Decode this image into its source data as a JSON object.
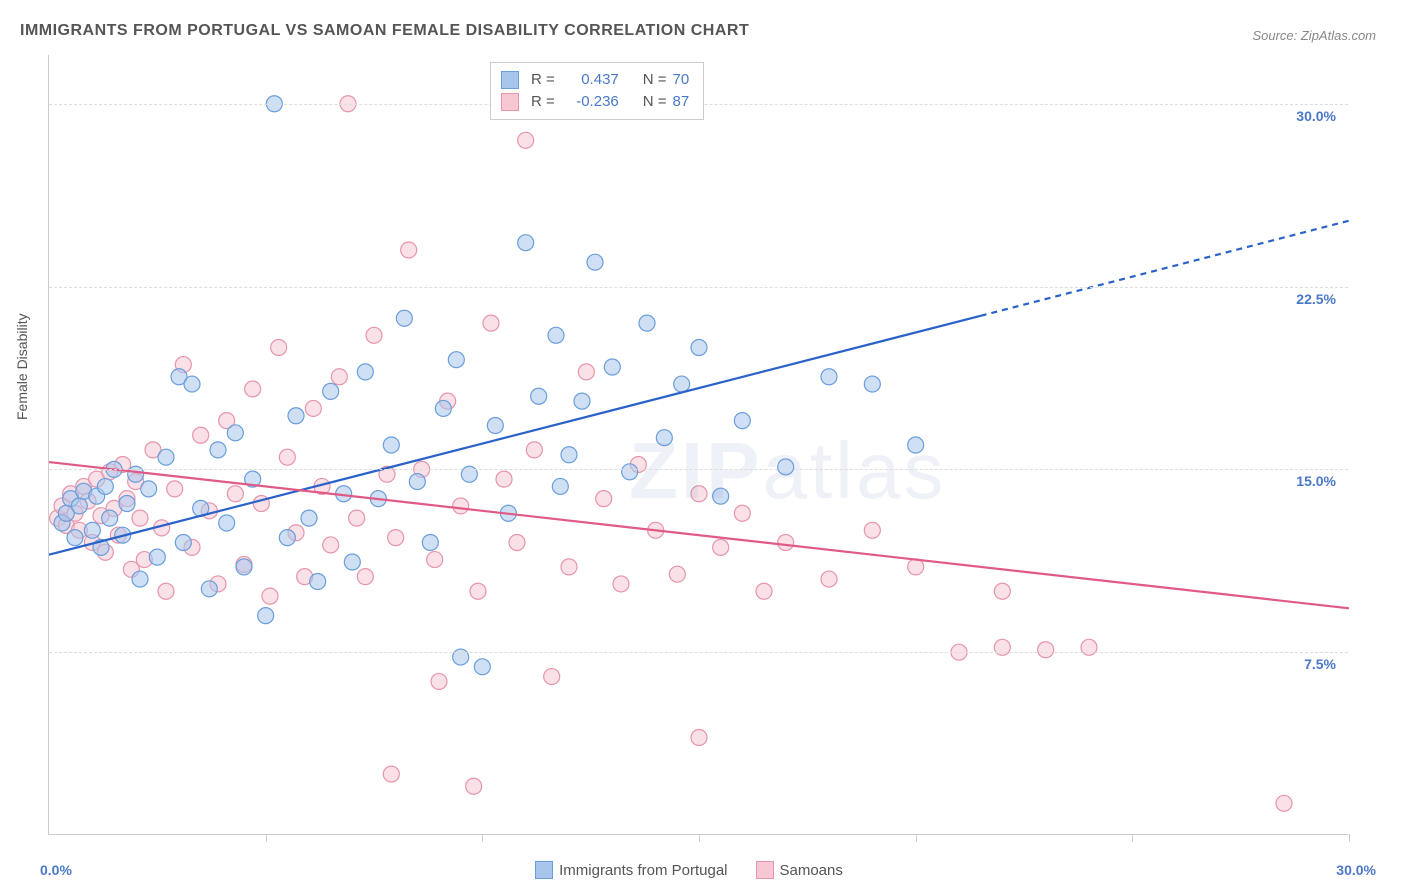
{
  "title": "IMMIGRANTS FROM PORTUGAL VS SAMOAN FEMALE DISABILITY CORRELATION CHART",
  "source": "Source: ZipAtlas.com",
  "y_axis_label": "Female Disability",
  "watermark_a": "ZIP",
  "watermark_b": "atlas",
  "colors": {
    "series1_fill": "#a8c6ec",
    "series1_stroke": "#6a9edb",
    "series1_line": "#2a62c9",
    "series2_fill": "#f6c8d4",
    "series2_stroke": "#e695ab",
    "series2_line": "#e05a85",
    "axis_label": "#4a78c8",
    "grid": "#dddddd"
  },
  "chart": {
    "type": "scatter",
    "xlim": [
      0,
      30
    ],
    "ylim": [
      0,
      32
    ],
    "x_ticks": [
      0,
      5,
      10,
      15,
      20,
      25,
      30
    ],
    "y_grid": [
      {
        "v": 7.5,
        "label": "7.5%"
      },
      {
        "v": 15.0,
        "label": "15.0%"
      },
      {
        "v": 22.5,
        "label": "22.5%"
      },
      {
        "v": 30.0,
        "label": "30.0%"
      }
    ],
    "x_corner_min": "0.0%",
    "x_corner_max": "30.0%",
    "legend_top": [
      {
        "r_label": "R =",
        "r_val": "0.437",
        "n_label": "N =",
        "n_val": "70",
        "swatch_fill": "#a8c6ec",
        "swatch_stroke": "#6a9edb"
      },
      {
        "r_label": "R =",
        "r_val": "-0.236",
        "n_label": "N =",
        "n_val": "87",
        "swatch_fill": "#f6c8d4",
        "swatch_stroke": "#e695ab"
      }
    ],
    "legend_bottom": [
      {
        "label": "Immigrants from Portugal",
        "swatch_fill": "#a8c6ec",
        "swatch_stroke": "#6a9edb"
      },
      {
        "label": "Samoans",
        "swatch_fill": "#f6c8d4",
        "swatch_stroke": "#e695ab"
      }
    ],
    "trend_lines": {
      "series1": {
        "x1": 0,
        "y1": 11.5,
        "x2_solid": 21.5,
        "y2_solid": 21.3,
        "x2_dash": 30,
        "y2_dash": 25.2,
        "color": "#2a62c9"
      },
      "series2": {
        "x1": 0,
        "y1": 15.3,
        "x2": 30,
        "y2": 9.3,
        "color": "#e05a85"
      }
    },
    "marker_radius": 8,
    "marker_opacity": 0.55,
    "series1_points": [
      [
        0.3,
        12.8
      ],
      [
        0.4,
        13.2
      ],
      [
        0.5,
        13.8
      ],
      [
        0.6,
        12.2
      ],
      [
        0.7,
        13.5
      ],
      [
        0.8,
        14.1
      ],
      [
        1.0,
        12.5
      ],
      [
        1.1,
        13.9
      ],
      [
        1.2,
        11.8
      ],
      [
        1.3,
        14.3
      ],
      [
        1.4,
        13.0
      ],
      [
        1.5,
        15.0
      ],
      [
        1.7,
        12.3
      ],
      [
        1.8,
        13.6
      ],
      [
        2.0,
        14.8
      ],
      [
        2.1,
        10.5
      ],
      [
        2.3,
        14.2
      ],
      [
        2.5,
        11.4
      ],
      [
        2.7,
        15.5
      ],
      [
        3.0,
        18.8
      ],
      [
        3.1,
        12.0
      ],
      [
        3.3,
        18.5
      ],
      [
        3.5,
        13.4
      ],
      [
        3.7,
        10.1
      ],
      [
        3.9,
        15.8
      ],
      [
        4.1,
        12.8
      ],
      [
        4.3,
        16.5
      ],
      [
        4.5,
        11.0
      ],
      [
        4.7,
        14.6
      ],
      [
        5.0,
        9.0
      ],
      [
        5.2,
        30.0
      ],
      [
        5.5,
        12.2
      ],
      [
        5.7,
        17.2
      ],
      [
        6.0,
        13.0
      ],
      [
        6.2,
        10.4
      ],
      [
        6.5,
        18.2
      ],
      [
        6.8,
        14.0
      ],
      [
        7.0,
        11.2
      ],
      [
        7.3,
        19.0
      ],
      [
        7.6,
        13.8
      ],
      [
        7.9,
        16.0
      ],
      [
        8.2,
        21.2
      ],
      [
        8.5,
        14.5
      ],
      [
        8.8,
        12.0
      ],
      [
        9.1,
        17.5
      ],
      [
        9.4,
        19.5
      ],
      [
        9.5,
        7.3
      ],
      [
        9.7,
        14.8
      ],
      [
        10.0,
        6.9
      ],
      [
        10.3,
        16.8
      ],
      [
        10.6,
        13.2
      ],
      [
        11.0,
        24.3
      ],
      [
        11.3,
        18.0
      ],
      [
        11.7,
        20.5
      ],
      [
        11.8,
        14.3
      ],
      [
        12.0,
        15.6
      ],
      [
        12.3,
        17.8
      ],
      [
        12.6,
        23.5
      ],
      [
        13.0,
        19.2
      ],
      [
        13.4,
        14.9
      ],
      [
        13.8,
        21.0
      ],
      [
        14.2,
        16.3
      ],
      [
        14.6,
        18.5
      ],
      [
        15.0,
        20.0
      ],
      [
        15.5,
        13.9
      ],
      [
        16.0,
        17.0
      ],
      [
        17.0,
        15.1
      ],
      [
        18.0,
        18.8
      ],
      [
        19.0,
        18.5
      ],
      [
        20.0,
        16.0
      ]
    ],
    "series2_points": [
      [
        0.2,
        13.0
      ],
      [
        0.3,
        13.5
      ],
      [
        0.4,
        12.7
      ],
      [
        0.5,
        14.0
      ],
      [
        0.6,
        13.2
      ],
      [
        0.7,
        12.5
      ],
      [
        0.8,
        14.3
      ],
      [
        0.9,
        13.7
      ],
      [
        1.0,
        12.0
      ],
      [
        1.1,
        14.6
      ],
      [
        1.2,
        13.1
      ],
      [
        1.3,
        11.6
      ],
      [
        1.4,
        14.9
      ],
      [
        1.5,
        13.4
      ],
      [
        1.6,
        12.3
      ],
      [
        1.7,
        15.2
      ],
      [
        1.8,
        13.8
      ],
      [
        1.9,
        10.9
      ],
      [
        2.0,
        14.5
      ],
      [
        2.1,
        13.0
      ],
      [
        2.2,
        11.3
      ],
      [
        2.4,
        15.8
      ],
      [
        2.6,
        12.6
      ],
      [
        2.7,
        10.0
      ],
      [
        2.9,
        14.2
      ],
      [
        3.1,
        19.3
      ],
      [
        3.3,
        11.8
      ],
      [
        3.5,
        16.4
      ],
      [
        3.7,
        13.3
      ],
      [
        3.9,
        10.3
      ],
      [
        4.1,
        17.0
      ],
      [
        4.3,
        14.0
      ],
      [
        4.5,
        11.1
      ],
      [
        4.7,
        18.3
      ],
      [
        4.9,
        13.6
      ],
      [
        5.1,
        9.8
      ],
      [
        5.3,
        20.0
      ],
      [
        5.5,
        15.5
      ],
      [
        5.7,
        12.4
      ],
      [
        5.9,
        10.6
      ],
      [
        6.1,
        17.5
      ],
      [
        6.3,
        14.3
      ],
      [
        6.5,
        11.9
      ],
      [
        6.7,
        18.8
      ],
      [
        6.9,
        30.0
      ],
      [
        7.1,
        13.0
      ],
      [
        7.3,
        10.6
      ],
      [
        7.5,
        20.5
      ],
      [
        7.8,
        14.8
      ],
      [
        7.9,
        2.5
      ],
      [
        8.0,
        12.2
      ],
      [
        8.3,
        24.0
      ],
      [
        8.6,
        15.0
      ],
      [
        8.9,
        11.3
      ],
      [
        9.0,
        6.3
      ],
      [
        9.2,
        17.8
      ],
      [
        9.5,
        13.5
      ],
      [
        9.8,
        2.0
      ],
      [
        9.9,
        10.0
      ],
      [
        10.2,
        21.0
      ],
      [
        10.5,
        14.6
      ],
      [
        10.8,
        12.0
      ],
      [
        11.0,
        28.5
      ],
      [
        11.2,
        15.8
      ],
      [
        11.6,
        6.5
      ],
      [
        12.0,
        11.0
      ],
      [
        12.4,
        19.0
      ],
      [
        12.8,
        13.8
      ],
      [
        13.2,
        10.3
      ],
      [
        13.6,
        15.2
      ],
      [
        14.0,
        12.5
      ],
      [
        14.5,
        10.7
      ],
      [
        15.0,
        14.0
      ],
      [
        15.0,
        4.0
      ],
      [
        15.5,
        11.8
      ],
      [
        16.0,
        13.2
      ],
      [
        16.5,
        10.0
      ],
      [
        17.0,
        12.0
      ],
      [
        18.0,
        10.5
      ],
      [
        19.0,
        12.5
      ],
      [
        20.0,
        11.0
      ],
      [
        21.0,
        7.5
      ],
      [
        22.0,
        7.7
      ],
      [
        22.0,
        10.0
      ],
      [
        23.0,
        7.6
      ],
      [
        24.0,
        7.7
      ],
      [
        28.5,
        1.3
      ]
    ]
  }
}
